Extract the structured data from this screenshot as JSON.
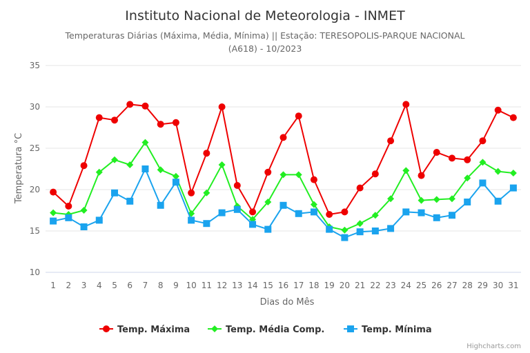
{
  "chart_data": {
    "type": "line",
    "title": "Instituto Nacional de Meteorologia - INMET",
    "subtitle_line1": "Temperaturas Diárias (Máxima, Média, Mínima) || Estação: TERESOPOLIS-PARQUE NACIONAL",
    "subtitle_line2": "(A618) - 10/2023",
    "xlabel": "Dias do Mês",
    "ylabel": "Temperatura °C",
    "ylim": [
      10,
      35
    ],
    "yticks": [
      10,
      15,
      20,
      25,
      30,
      35
    ],
    "grid": true,
    "legend_position": "bottom-center",
    "x": [
      1,
      2,
      3,
      4,
      5,
      6,
      7,
      8,
      9,
      10,
      11,
      12,
      13,
      14,
      15,
      16,
      17,
      18,
      19,
      20,
      21,
      22,
      23,
      24,
      25,
      26,
      27,
      28,
      29,
      30,
      31
    ],
    "series": [
      {
        "name": "Temp. Máxima",
        "color": "#ee0000",
        "marker": "circle",
        "values": [
          19.7,
          18.0,
          22.9,
          28.7,
          28.4,
          30.3,
          30.1,
          27.9,
          28.1,
          19.6,
          24.4,
          30.0,
          20.5,
          17.3,
          22.1,
          26.3,
          28.9,
          21.2,
          17.0,
          17.3,
          20.2,
          21.9,
          25.9,
          30.3,
          21.7,
          24.5,
          23.8,
          23.6,
          25.9,
          29.6,
          28.7
        ]
      },
      {
        "name": "Temp. Média Comp.",
        "color": "#22ee22",
        "marker": "diamond",
        "values": [
          17.2,
          17.0,
          17.5,
          22.1,
          23.6,
          23.0,
          25.7,
          22.4,
          21.6,
          17.1,
          19.6,
          23.0,
          18.0,
          16.4,
          18.5,
          21.8,
          21.8,
          18.2,
          15.5,
          15.1,
          15.9,
          16.9,
          18.9,
          22.3,
          18.7,
          18.8,
          18.9,
          21.4,
          23.3,
          22.2,
          22.0
        ]
      },
      {
        "name": "Temp. Mínima",
        "color": "#1aa3ee",
        "marker": "square",
        "values": [
          16.2,
          16.6,
          15.5,
          16.3,
          19.6,
          18.6,
          22.5,
          18.1,
          20.9,
          16.3,
          15.9,
          17.2,
          17.6,
          15.8,
          15.2,
          18.1,
          17.1,
          17.3,
          15.2,
          14.2,
          14.9,
          15.0,
          15.3,
          17.3,
          17.2,
          16.6,
          16.9,
          18.5,
          20.8,
          18.6,
          20.2
        ]
      }
    ]
  },
  "credits": "Highcharts.com"
}
